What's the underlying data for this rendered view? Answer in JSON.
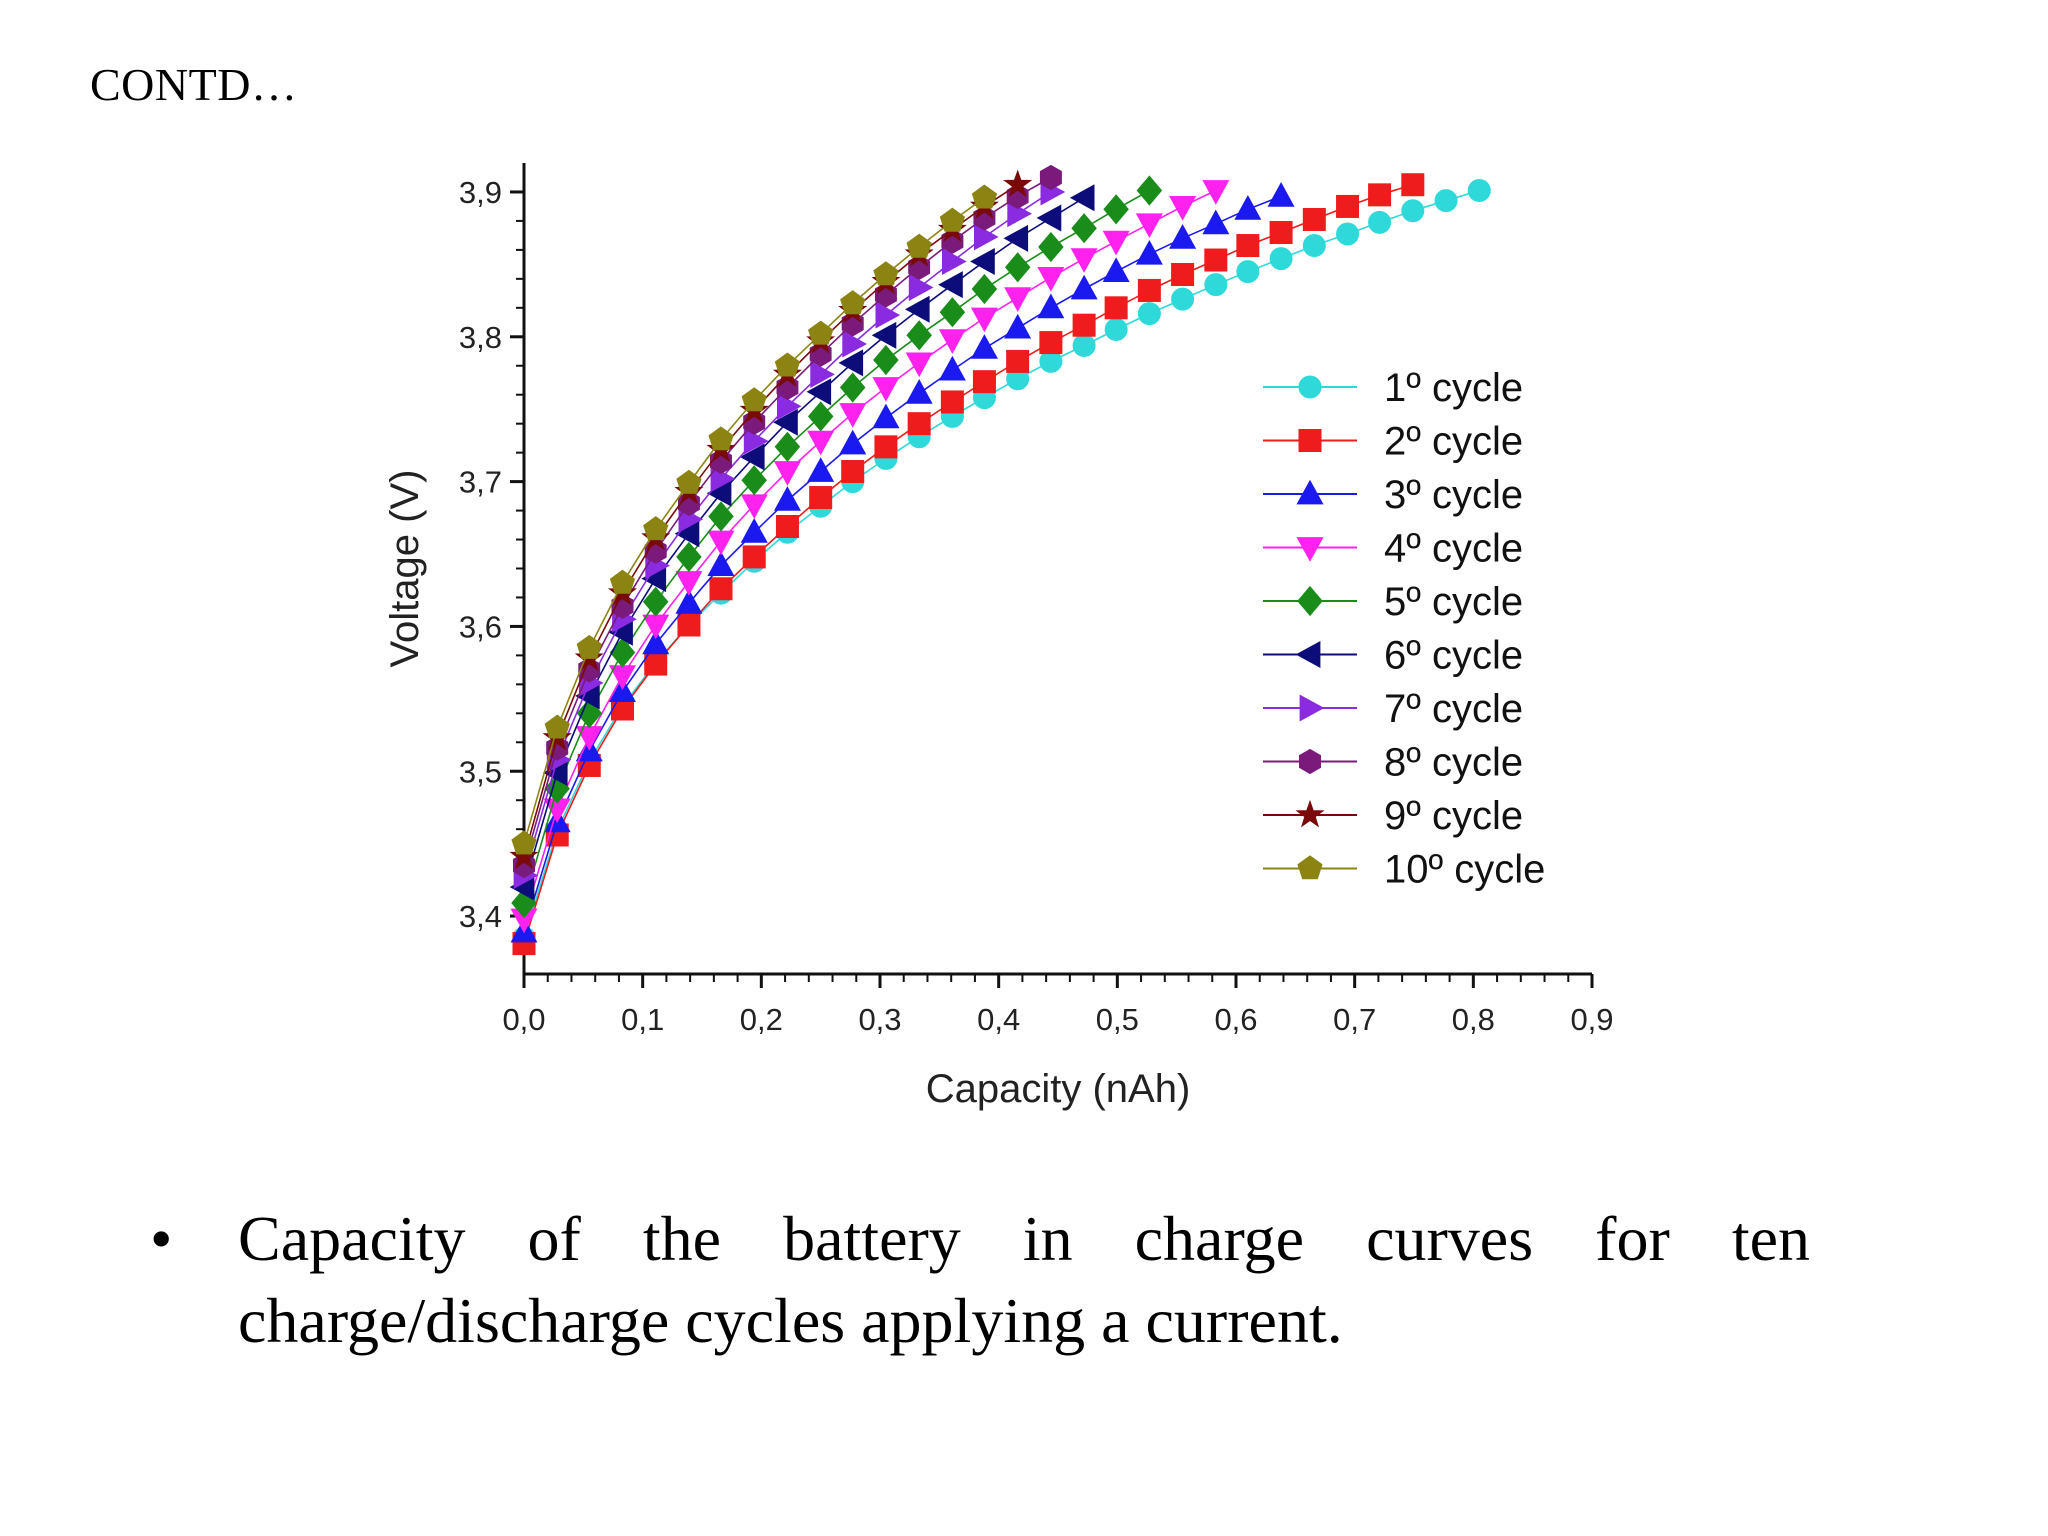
{
  "slide": {
    "heading": "CONTD…",
    "bullet_symbol": "•",
    "bullet_text": "Capacity of the battery in charge curves for ten charge/discharge cycles applying a current."
  },
  "chart_data": {
    "type": "line",
    "xlabel": "Capacity (nAh)",
    "ylabel": "Voltage (V)",
    "xlim": [
      0.0,
      0.9
    ],
    "ylim": [
      3.36,
      3.92
    ],
    "x_ticks": [
      0.0,
      0.1,
      0.2,
      0.3,
      0.4,
      0.5,
      0.6,
      0.7,
      0.8,
      0.9
    ],
    "x_tick_labels": [
      "0,0",
      "0,1",
      "0,2",
      "0,3",
      "0,4",
      "0,5",
      "0,6",
      "0,7",
      "0,8",
      "0,9"
    ],
    "y_ticks": [
      3.4,
      3.5,
      3.6,
      3.7,
      3.8,
      3.9
    ],
    "y_tick_labels": [
      "3,4",
      "3,5",
      "3,6",
      "3,7",
      "3,8",
      "3,9"
    ],
    "grid": false,
    "legend_position": "right",
    "series": [
      {
        "name": "1º cycle",
        "color": "#2fd9d9",
        "marker": "circle",
        "x": [
          0.0,
          0.028,
          0.055,
          0.083,
          0.111,
          0.139,
          0.166,
          0.194,
          0.222,
          0.25,
          0.277,
          0.305,
          0.333,
          0.361,
          0.388,
          0.416,
          0.444,
          0.472,
          0.499,
          0.527,
          0.555,
          0.583,
          0.61,
          0.638,
          0.666,
          0.694,
          0.721,
          0.749,
          0.777,
          0.805
        ],
        "y": [
          3.385,
          3.459,
          3.507,
          3.545,
          3.575,
          3.601,
          3.623,
          3.645,
          3.665,
          3.683,
          3.7,
          3.716,
          3.731,
          3.745,
          3.758,
          3.771,
          3.783,
          3.794,
          3.805,
          3.816,
          3.826,
          3.836,
          3.845,
          3.854,
          3.863,
          3.871,
          3.879,
          3.887,
          3.894,
          3.901
        ]
      },
      {
        "name": "2º cycle",
        "color": "#ee1c1c",
        "marker": "square",
        "x": [
          0.0,
          0.028,
          0.055,
          0.083,
          0.111,
          0.139,
          0.166,
          0.194,
          0.222,
          0.25,
          0.277,
          0.305,
          0.333,
          0.361,
          0.388,
          0.416,
          0.444,
          0.472,
          0.499,
          0.527,
          0.555,
          0.583,
          0.61,
          0.638,
          0.666,
          0.694,
          0.721,
          0.749
        ],
        "y": [
          3.381,
          3.456,
          3.504,
          3.543,
          3.574,
          3.601,
          3.626,
          3.648,
          3.669,
          3.689,
          3.707,
          3.724,
          3.74,
          3.755,
          3.769,
          3.783,
          3.796,
          3.808,
          3.82,
          3.832,
          3.843,
          3.853,
          3.863,
          3.872,
          3.881,
          3.89,
          3.898,
          3.905
        ]
      },
      {
        "name": "3º cycle",
        "color": "#1a1af0",
        "marker": "triangle-up",
        "x": [
          0.0,
          0.028,
          0.055,
          0.083,
          0.111,
          0.139,
          0.166,
          0.194,
          0.222,
          0.25,
          0.277,
          0.305,
          0.333,
          0.361,
          0.388,
          0.416,
          0.444,
          0.472,
          0.499,
          0.527,
          0.555,
          0.583,
          0.61,
          0.638
        ],
        "y": [
          3.389,
          3.465,
          3.514,
          3.555,
          3.588,
          3.616,
          3.642,
          3.665,
          3.687,
          3.707,
          3.726,
          3.744,
          3.761,
          3.777,
          3.792,
          3.806,
          3.82,
          3.833,
          3.845,
          3.857,
          3.868,
          3.878,
          3.888,
          3.897
        ]
      },
      {
        "name": "4º cycle",
        "color": "#ff22ee",
        "marker": "triangle-down",
        "x": [
          0.0,
          0.028,
          0.055,
          0.083,
          0.111,
          0.139,
          0.166,
          0.194,
          0.222,
          0.25,
          0.277,
          0.305,
          0.333,
          0.361,
          0.388,
          0.416,
          0.444,
          0.472,
          0.499,
          0.527,
          0.555,
          0.583
        ],
        "y": [
          3.398,
          3.474,
          3.524,
          3.566,
          3.601,
          3.631,
          3.659,
          3.684,
          3.707,
          3.728,
          3.747,
          3.765,
          3.782,
          3.798,
          3.813,
          3.827,
          3.841,
          3.854,
          3.866,
          3.878,
          3.89,
          3.901
        ]
      },
      {
        "name": "5º cycle",
        "color": "#1a8c1a",
        "marker": "diamond",
        "x": [
          0.0,
          0.028,
          0.055,
          0.083,
          0.111,
          0.139,
          0.166,
          0.194,
          0.222,
          0.25,
          0.277,
          0.305,
          0.333,
          0.361,
          0.388,
          0.416,
          0.444,
          0.472,
          0.499,
          0.527
        ],
        "y": [
          3.409,
          3.488,
          3.54,
          3.582,
          3.617,
          3.648,
          3.676,
          3.701,
          3.724,
          3.745,
          3.765,
          3.784,
          3.801,
          3.817,
          3.833,
          3.848,
          3.862,
          3.875,
          3.888,
          3.901
        ]
      },
      {
        "name": "6º cycle",
        "color": "#0c0c7a",
        "marker": "triangle-left",
        "x": [
          0.0,
          0.028,
          0.055,
          0.083,
          0.111,
          0.139,
          0.166,
          0.194,
          0.222,
          0.25,
          0.277,
          0.305,
          0.333,
          0.361,
          0.388,
          0.416,
          0.444,
          0.472
        ],
        "y": [
          3.42,
          3.499,
          3.552,
          3.596,
          3.633,
          3.664,
          3.692,
          3.717,
          3.741,
          3.762,
          3.782,
          3.801,
          3.819,
          3.836,
          3.852,
          3.868,
          3.882,
          3.896
        ]
      },
      {
        "name": "7º cycle",
        "color": "#8a2be2",
        "marker": "triangle-right",
        "x": [
          0.0,
          0.028,
          0.055,
          0.083,
          0.111,
          0.139,
          0.166,
          0.194,
          0.222,
          0.25,
          0.277,
          0.305,
          0.333,
          0.361,
          0.388,
          0.416,
          0.444
        ],
        "y": [
          3.428,
          3.508,
          3.561,
          3.605,
          3.642,
          3.674,
          3.702,
          3.728,
          3.752,
          3.774,
          3.795,
          3.815,
          3.834,
          3.852,
          3.869,
          3.885,
          3.9
        ]
      },
      {
        "name": "8º cycle",
        "color": "#7a1a7a",
        "marker": "hexagon",
        "x": [
          0.0,
          0.028,
          0.055,
          0.083,
          0.111,
          0.139,
          0.166,
          0.194,
          0.222,
          0.25,
          0.277,
          0.305,
          0.333,
          0.361,
          0.388,
          0.416,
          0.444
        ],
        "y": [
          3.435,
          3.516,
          3.57,
          3.614,
          3.652,
          3.685,
          3.714,
          3.741,
          3.765,
          3.788,
          3.809,
          3.829,
          3.848,
          3.866,
          3.882,
          3.897,
          3.91
        ]
      },
      {
        "name": "9º cycle",
        "color": "#7a0a0a",
        "marker": "star",
        "x": [
          0.0,
          0.028,
          0.055,
          0.083,
          0.111,
          0.139,
          0.166,
          0.194,
          0.222,
          0.25,
          0.277,
          0.305,
          0.333,
          0.361,
          0.388,
          0.416
        ],
        "y": [
          3.441,
          3.523,
          3.578,
          3.623,
          3.661,
          3.693,
          3.722,
          3.749,
          3.774,
          3.797,
          3.818,
          3.838,
          3.857,
          3.874,
          3.89,
          3.905
        ]
      },
      {
        "name": "10º cycle",
        "color": "#8c8412",
        "marker": "pentagon",
        "x": [
          0.0,
          0.028,
          0.055,
          0.083,
          0.111,
          0.139,
          0.166,
          0.194,
          0.222,
          0.25,
          0.277,
          0.305,
          0.333,
          0.361,
          0.388
        ],
        "y": [
          3.45,
          3.53,
          3.585,
          3.63,
          3.667,
          3.699,
          3.729,
          3.756,
          3.78,
          3.802,
          3.823,
          3.843,
          3.862,
          3.88,
          3.896
        ]
      }
    ]
  }
}
